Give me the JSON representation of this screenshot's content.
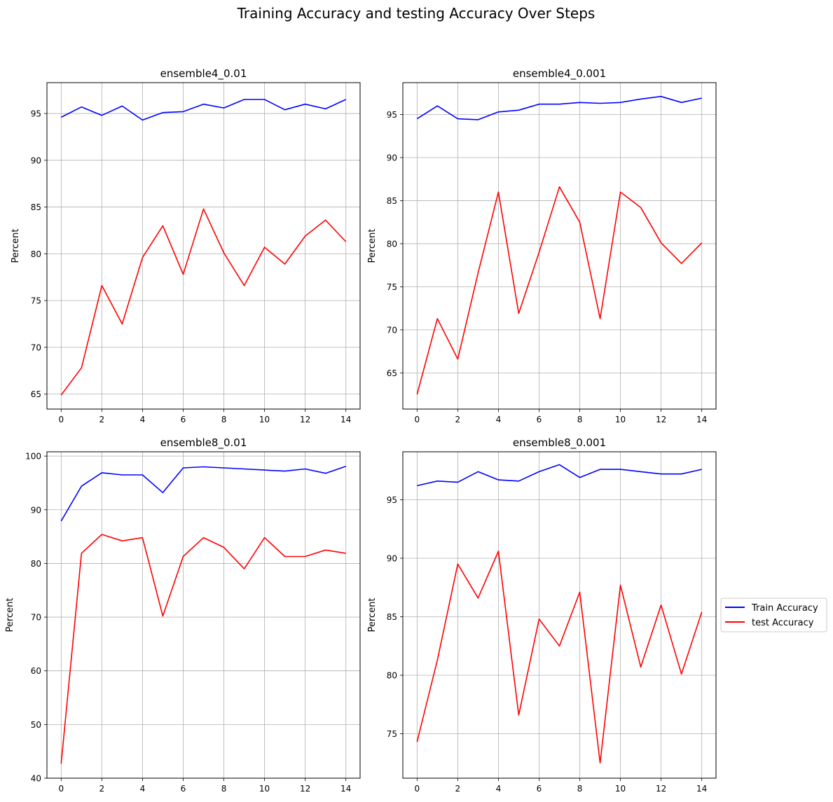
{
  "figure": {
    "title": "Training Accuracy and testing Accuracy Over Steps",
    "legend_position": "right-center",
    "series_colors": {
      "Train Accuracy": "#0000ff",
      "test Accuracy": "#ff0000"
    }
  },
  "legend": {
    "entries": [
      {
        "label": "Train Accuracy",
        "color": "#0000ff"
      },
      {
        "label": "test Accuracy",
        "color": "#ff0000"
      }
    ]
  },
  "chart_data": [
    {
      "type": "line",
      "title": "ensemble4_0.01",
      "xlabel": "",
      "ylabel": "Percent",
      "grid": true,
      "x": [
        0,
        1,
        2,
        3,
        4,
        5,
        6,
        7,
        8,
        9,
        10,
        11,
        12,
        13,
        14
      ],
      "xlim": [
        -0.7,
        14.7
      ],
      "ylim": [
        63.4,
        98.3
      ],
      "xticks": [
        0,
        2,
        4,
        6,
        8,
        10,
        12,
        14
      ],
      "yticks": [
        65,
        70,
        75,
        80,
        85,
        90,
        95
      ],
      "series": [
        {
          "name": "Train Accuracy",
          "color": "#0000ff",
          "values": [
            94.6,
            95.7,
            94.8,
            95.8,
            94.3,
            95.1,
            95.2,
            96.0,
            95.6,
            96.5,
            96.5,
            95.4,
            96.0,
            95.5,
            96.5
          ]
        },
        {
          "name": "test Accuracy",
          "color": "#ff0000",
          "values": [
            64.9,
            67.8,
            76.6,
            72.5,
            79.6,
            83.0,
            77.8,
            84.8,
            80.1,
            76.6,
            80.7,
            78.9,
            81.9,
            83.6,
            81.3
          ]
        }
      ]
    },
    {
      "type": "line",
      "title": "ensemble4_0.001",
      "xlabel": "",
      "ylabel": "Percent",
      "grid": true,
      "x": [
        0,
        1,
        2,
        3,
        4,
        5,
        6,
        7,
        8,
        9,
        10,
        11,
        12,
        13,
        14
      ],
      "xlim": [
        -0.7,
        14.7
      ],
      "ylim": [
        60.8,
        98.7
      ],
      "xticks": [
        0,
        2,
        4,
        6,
        8,
        10,
        12,
        14
      ],
      "yticks": [
        65,
        70,
        75,
        80,
        85,
        90,
        95
      ],
      "series": [
        {
          "name": "Train Accuracy",
          "color": "#0000ff",
          "values": [
            94.5,
            96.0,
            94.5,
            94.4,
            95.3,
            95.5,
            96.2,
            96.2,
            96.4,
            96.3,
            96.4,
            96.8,
            97.1,
            96.4,
            96.9
          ]
        },
        {
          "name": "test Accuracy",
          "color": "#ff0000",
          "values": [
            62.5,
            71.3,
            66.6,
            76.6,
            86.0,
            71.9,
            79.0,
            86.6,
            82.5,
            71.3,
            86.0,
            84.2,
            80.1,
            77.7,
            80.1
          ]
        }
      ]
    },
    {
      "type": "line",
      "title": "ensemble8_0.01",
      "xlabel": "",
      "ylabel": "Percent",
      "grid": true,
      "x": [
        0,
        1,
        2,
        3,
        4,
        5,
        6,
        7,
        8,
        9,
        10,
        11,
        12,
        13,
        14
      ],
      "xlim": [
        -0.7,
        14.7
      ],
      "ylim": [
        40.0,
        100.8
      ],
      "xticks": [
        0,
        2,
        4,
        6,
        8,
        10,
        12,
        14
      ],
      "yticks": [
        40,
        50,
        60,
        70,
        80,
        90,
        100
      ],
      "series": [
        {
          "name": "Train Accuracy",
          "color": "#0000ff",
          "values": [
            87.9,
            94.4,
            96.9,
            96.5,
            96.5,
            93.2,
            97.8,
            98.0,
            97.8,
            97.6,
            97.4,
            97.2,
            97.6,
            96.8,
            98.1
          ]
        },
        {
          "name": "test Accuracy",
          "color": "#ff0000",
          "values": [
            42.7,
            81.9,
            85.4,
            84.2,
            84.8,
            70.2,
            81.3,
            84.8,
            83.0,
            79.0,
            84.8,
            81.3,
            81.3,
            82.5,
            81.9
          ]
        }
      ]
    },
    {
      "type": "line",
      "title": "ensemble8_0.001",
      "xlabel": "",
      "ylabel": "Percent",
      "grid": true,
      "x": [
        0,
        1,
        2,
        3,
        4,
        5,
        6,
        7,
        8,
        9,
        10,
        11,
        12,
        13,
        14
      ],
      "xlim": [
        -0.7,
        14.7
      ],
      "ylim": [
        71.2,
        99.1
      ],
      "xticks": [
        0,
        2,
        4,
        6,
        8,
        10,
        12,
        14
      ],
      "yticks": [
        75,
        80,
        85,
        90,
        95
      ],
      "series": [
        {
          "name": "Train Accuracy",
          "color": "#0000ff",
          "values": [
            96.2,
            96.6,
            96.5,
            97.4,
            96.7,
            96.6,
            97.4,
            98.0,
            96.9,
            97.6,
            97.6,
            97.4,
            97.2,
            97.2,
            97.6
          ]
        },
        {
          "name": "test Accuracy",
          "color": "#ff0000",
          "values": [
            74.3,
            81.3,
            89.5,
            86.6,
            90.6,
            76.6,
            84.8,
            82.5,
            87.1,
            72.5,
            87.7,
            80.7,
            86.0,
            80.1,
            85.4
          ]
        }
      ]
    }
  ]
}
